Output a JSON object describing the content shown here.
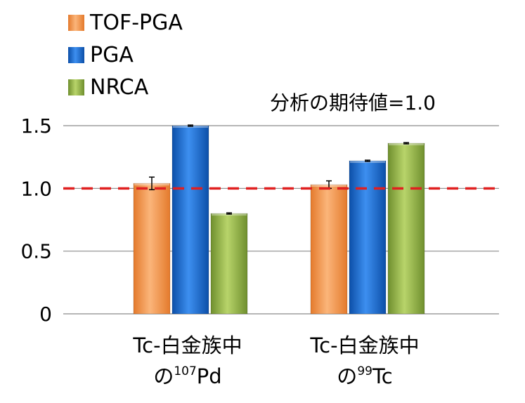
{
  "chart_data": {
    "type": "bar",
    "title": "",
    "xlabel": "",
    "ylabel": "",
    "ylim": [
      0,
      1.5
    ],
    "yticks": [
      "0",
      "0.5",
      "1.0",
      "1.5"
    ],
    "grid": true,
    "legend_position": "top-left",
    "reference_line": {
      "value": 1.0,
      "style": "dashed",
      "color": "#e02020"
    },
    "annotation": "分析の期待値=1.0",
    "categories": [
      {
        "line1": "Tc-白金族中",
        "line2_prefix": "の",
        "superscript": "107",
        "line2_suffix": "Pd"
      },
      {
        "line1": "Tc-白金族中",
        "line2_prefix": "の",
        "superscript": "99",
        "line2_suffix": "Tc"
      }
    ],
    "series": [
      {
        "name": "TOF-PGA",
        "color": "#f79646",
        "values": [
          1.04,
          1.03
        ],
        "errors": [
          0.05,
          0.03
        ]
      },
      {
        "name": "PGA",
        "color": "#1f6fd0",
        "values": [
          1.5,
          1.22
        ],
        "errors": [
          0.005,
          0.005
        ]
      },
      {
        "name": "NRCA",
        "color": "#9bbb59",
        "values": [
          0.8,
          1.36
        ],
        "errors": [
          0.005,
          0.005
        ]
      }
    ]
  }
}
